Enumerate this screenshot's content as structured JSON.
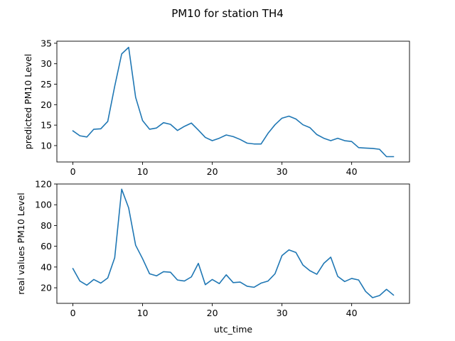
{
  "chart_data": {
    "type": "line",
    "title": "PM10 for station TH4",
    "xlabel": "utc_time",
    "x": [
      0,
      1,
      2,
      3,
      4,
      5,
      6,
      7,
      8,
      9,
      10,
      11,
      12,
      13,
      14,
      15,
      16,
      17,
      18,
      19,
      20,
      21,
      22,
      23,
      24,
      25,
      26,
      27,
      28,
      29,
      30,
      31,
      32,
      33,
      34,
      35,
      36,
      37,
      38,
      39,
      40,
      41,
      42,
      43,
      44,
      45,
      46
    ],
    "xticks": [
      0,
      10,
      20,
      30,
      40
    ],
    "xlim": [
      -2.3,
      48.3
    ],
    "line_color": "#1f77b4",
    "grid": false,
    "subplots": [
      {
        "ylabel": "predicted PM10 Level",
        "ylim": [
          6.0,
          35.5
        ],
        "yticks": [
          10,
          15,
          20,
          25,
          30,
          35
        ],
        "values": [
          13.6,
          12.4,
          12.1,
          14.0,
          14.1,
          15.9,
          24.5,
          32.4,
          34.0,
          21.8,
          16.1,
          14.0,
          14.3,
          15.6,
          15.2,
          13.7,
          14.7,
          15.5,
          13.8,
          12.0,
          11.2,
          11.8,
          12.6,
          12.2,
          11.5,
          10.6,
          10.4,
          10.4,
          13.0,
          15.1,
          16.7,
          17.2,
          16.5,
          15.1,
          14.4,
          12.7,
          11.8,
          11.2,
          11.8,
          11.2,
          11.0,
          9.5,
          9.4,
          9.3,
          9.1,
          7.3,
          7.3
        ]
      },
      {
        "ylabel": "real values PM10 Level",
        "ylim": [
          5.0,
          120.0
        ],
        "yticks": [
          20,
          40,
          60,
          80,
          100,
          120
        ],
        "values": [
          38.5,
          26.5,
          22.5,
          28.0,
          24.5,
          29.5,
          49.0,
          115.0,
          97.0,
          61.0,
          48.0,
          33.5,
          31.5,
          35.5,
          35.0,
          27.5,
          26.5,
          30.5,
          43.5,
          23.0,
          28.0,
          24.0,
          32.5,
          25.0,
          25.5,
          21.5,
          20.5,
          24.5,
          26.5,
          33.5,
          51.0,
          56.5,
          54.0,
          42.0,
          36.5,
          33.0,
          43.5,
          49.5,
          31.0,
          26.0,
          29.0,
          27.5,
          16.5,
          10.5,
          12.5,
          18.5,
          13.0
        ]
      }
    ]
  }
}
